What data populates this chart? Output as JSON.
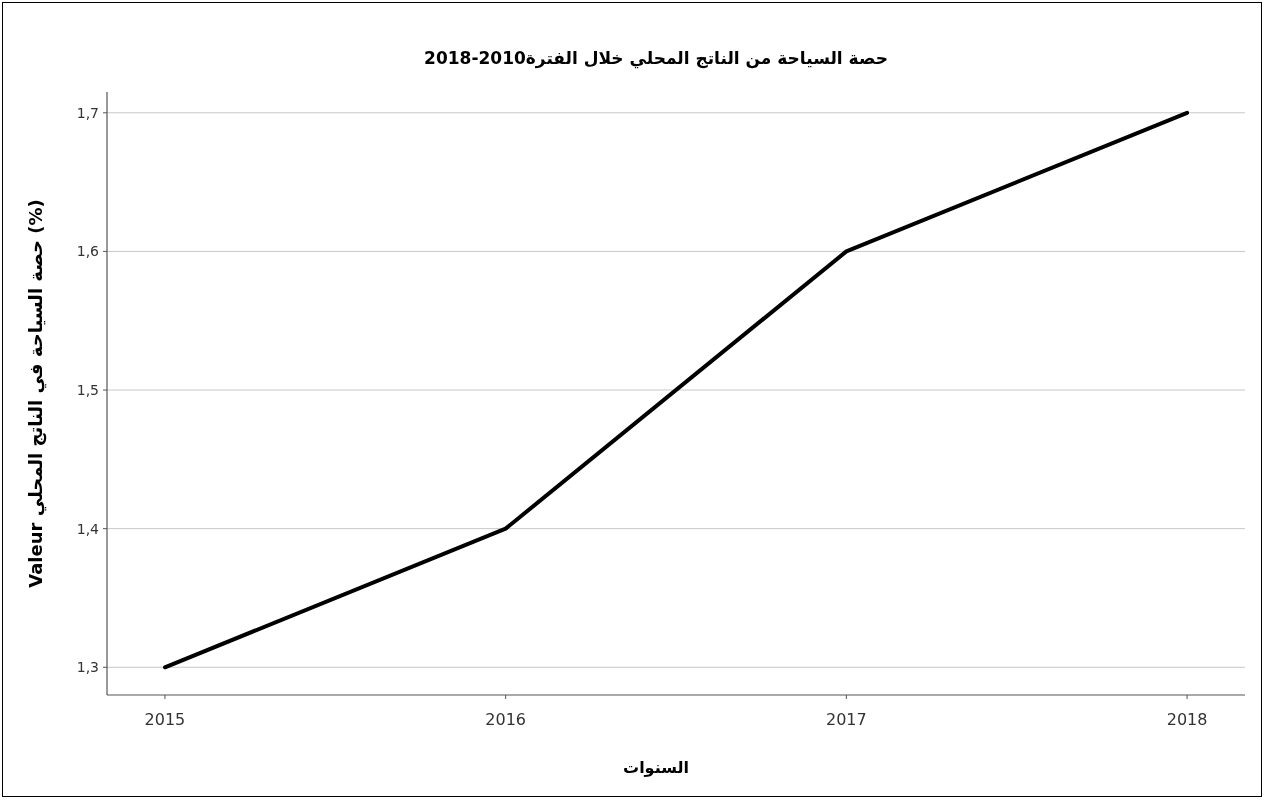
{
  "chart_data": {
    "type": "line",
    "title": "حصة السياحة من الناتج المحلي خلال الفترة2010-2018",
    "xlabel": "السنوات",
    "ylabel": "Valeur حصة السياحة في الناتج المحلي (%)",
    "categories": [
      "2015",
      "2016",
      "2017",
      "2018"
    ],
    "series": [
      {
        "color": "#000000",
        "values": [
          1.3,
          1.4,
          1.6,
          1.7
        ]
      }
    ],
    "ylim": [
      1.28,
      1.715
    ],
    "yticks": [
      {
        "value": 1.3,
        "label": "1,3"
      },
      {
        "value": 1.4,
        "label": "1,4"
      },
      {
        "value": 1.5,
        "label": "1,5"
      },
      {
        "value": 1.6,
        "label": "1,6"
      },
      {
        "value": 1.7,
        "label": "1,7"
      }
    ],
    "grid": "y"
  }
}
